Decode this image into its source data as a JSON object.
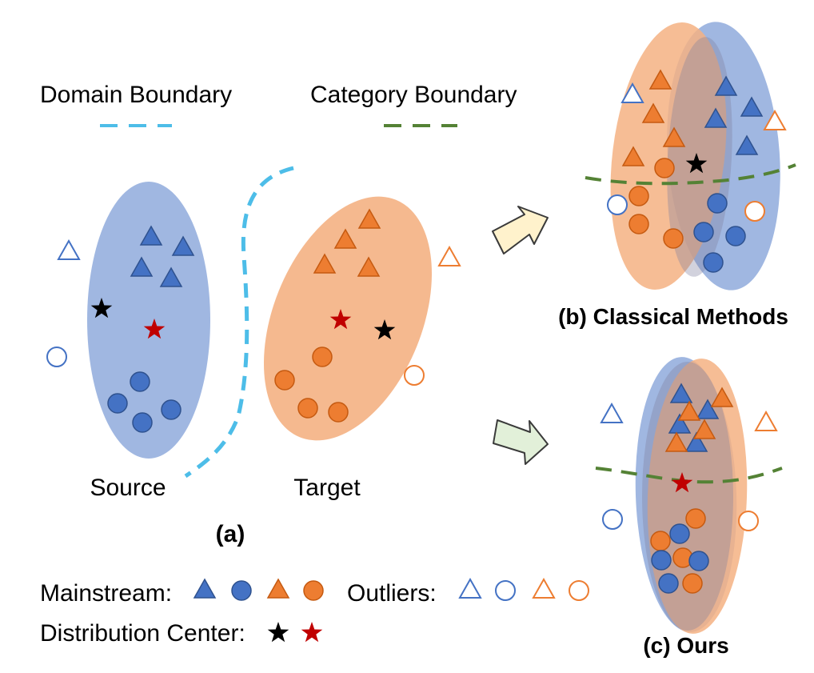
{
  "colors": {
    "blue_fill": "#4472c4",
    "blue_stroke": "#2f528f",
    "orange_fill": "#ed7d31",
    "orange_stroke": "#c55a11",
    "blue_region": "#8faadc",
    "orange_region": "#f4b183",
    "domain_boundary": "#4dbde8",
    "category_boundary": "#548235",
    "star_black": "#000000",
    "star_red": "#c00000",
    "arrow_b_fill": "#fff2cc",
    "arrow_c_fill": "#e2f0d9"
  },
  "legend": {
    "domain_boundary": "Domain Boundary",
    "category_boundary": "Category Boundary",
    "mainstream": "Mainstream:",
    "outliers": "Outliers:",
    "distribution_center": "Distribution Center:"
  },
  "panel_a": {
    "source_label": "Source",
    "target_label": "Target",
    "caption": "(a)"
  },
  "panel_b": {
    "caption": "(b) Classical Methods"
  },
  "panel_c": {
    "caption": "(c) Ours"
  }
}
